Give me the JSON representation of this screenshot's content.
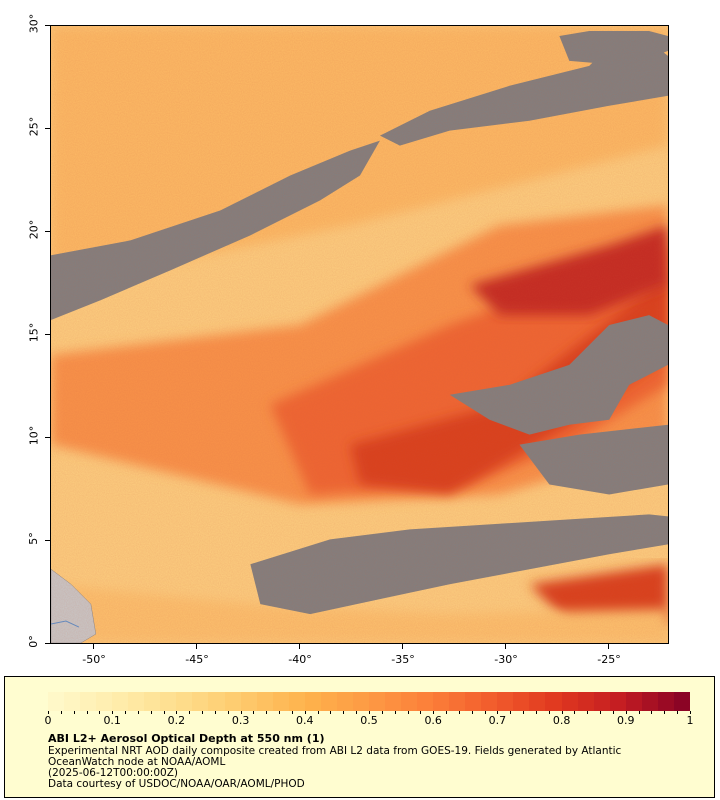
{
  "map": {
    "y_ticks": [
      "0°",
      "5°",
      "10°",
      "15°",
      "20°",
      "25°",
      "30°"
    ],
    "x_ticks": [
      "-50°",
      "-45°",
      "-40°",
      "-35°",
      "-30°",
      "-25°"
    ],
    "nodata_color": "#808080",
    "land_color": "#c8c8c8"
  },
  "legend": {
    "colorbar_labels": [
      "0",
      "0.1",
      "0.2",
      "0.3",
      "0.4",
      "0.5",
      "0.6",
      "0.7",
      "0.8",
      "0.9",
      "1"
    ],
    "colors": [
      "#fff8c8",
      "#ffecab",
      "#fedd8c",
      "#fec96b",
      "#feb24c",
      "#fd9a44",
      "#fc7e39",
      "#f15b2c",
      "#e0381f",
      "#c41d22",
      "#8b0425"
    ],
    "title": "ABI L2+ Aerosol Optical Depth at 550 nm (1)",
    "line1": "Experimental NRT AOD daily composite created from ABI L2 data from GOES-19. Fields generated by Atlantic",
    "line2": "OceanWatch node at NOAA/AOML",
    "line3": "(2025-06-12T00:00:00Z)",
    "line4": "Data courtesy of USDOC/NOAA/OAR/AOML/PHOD"
  }
}
